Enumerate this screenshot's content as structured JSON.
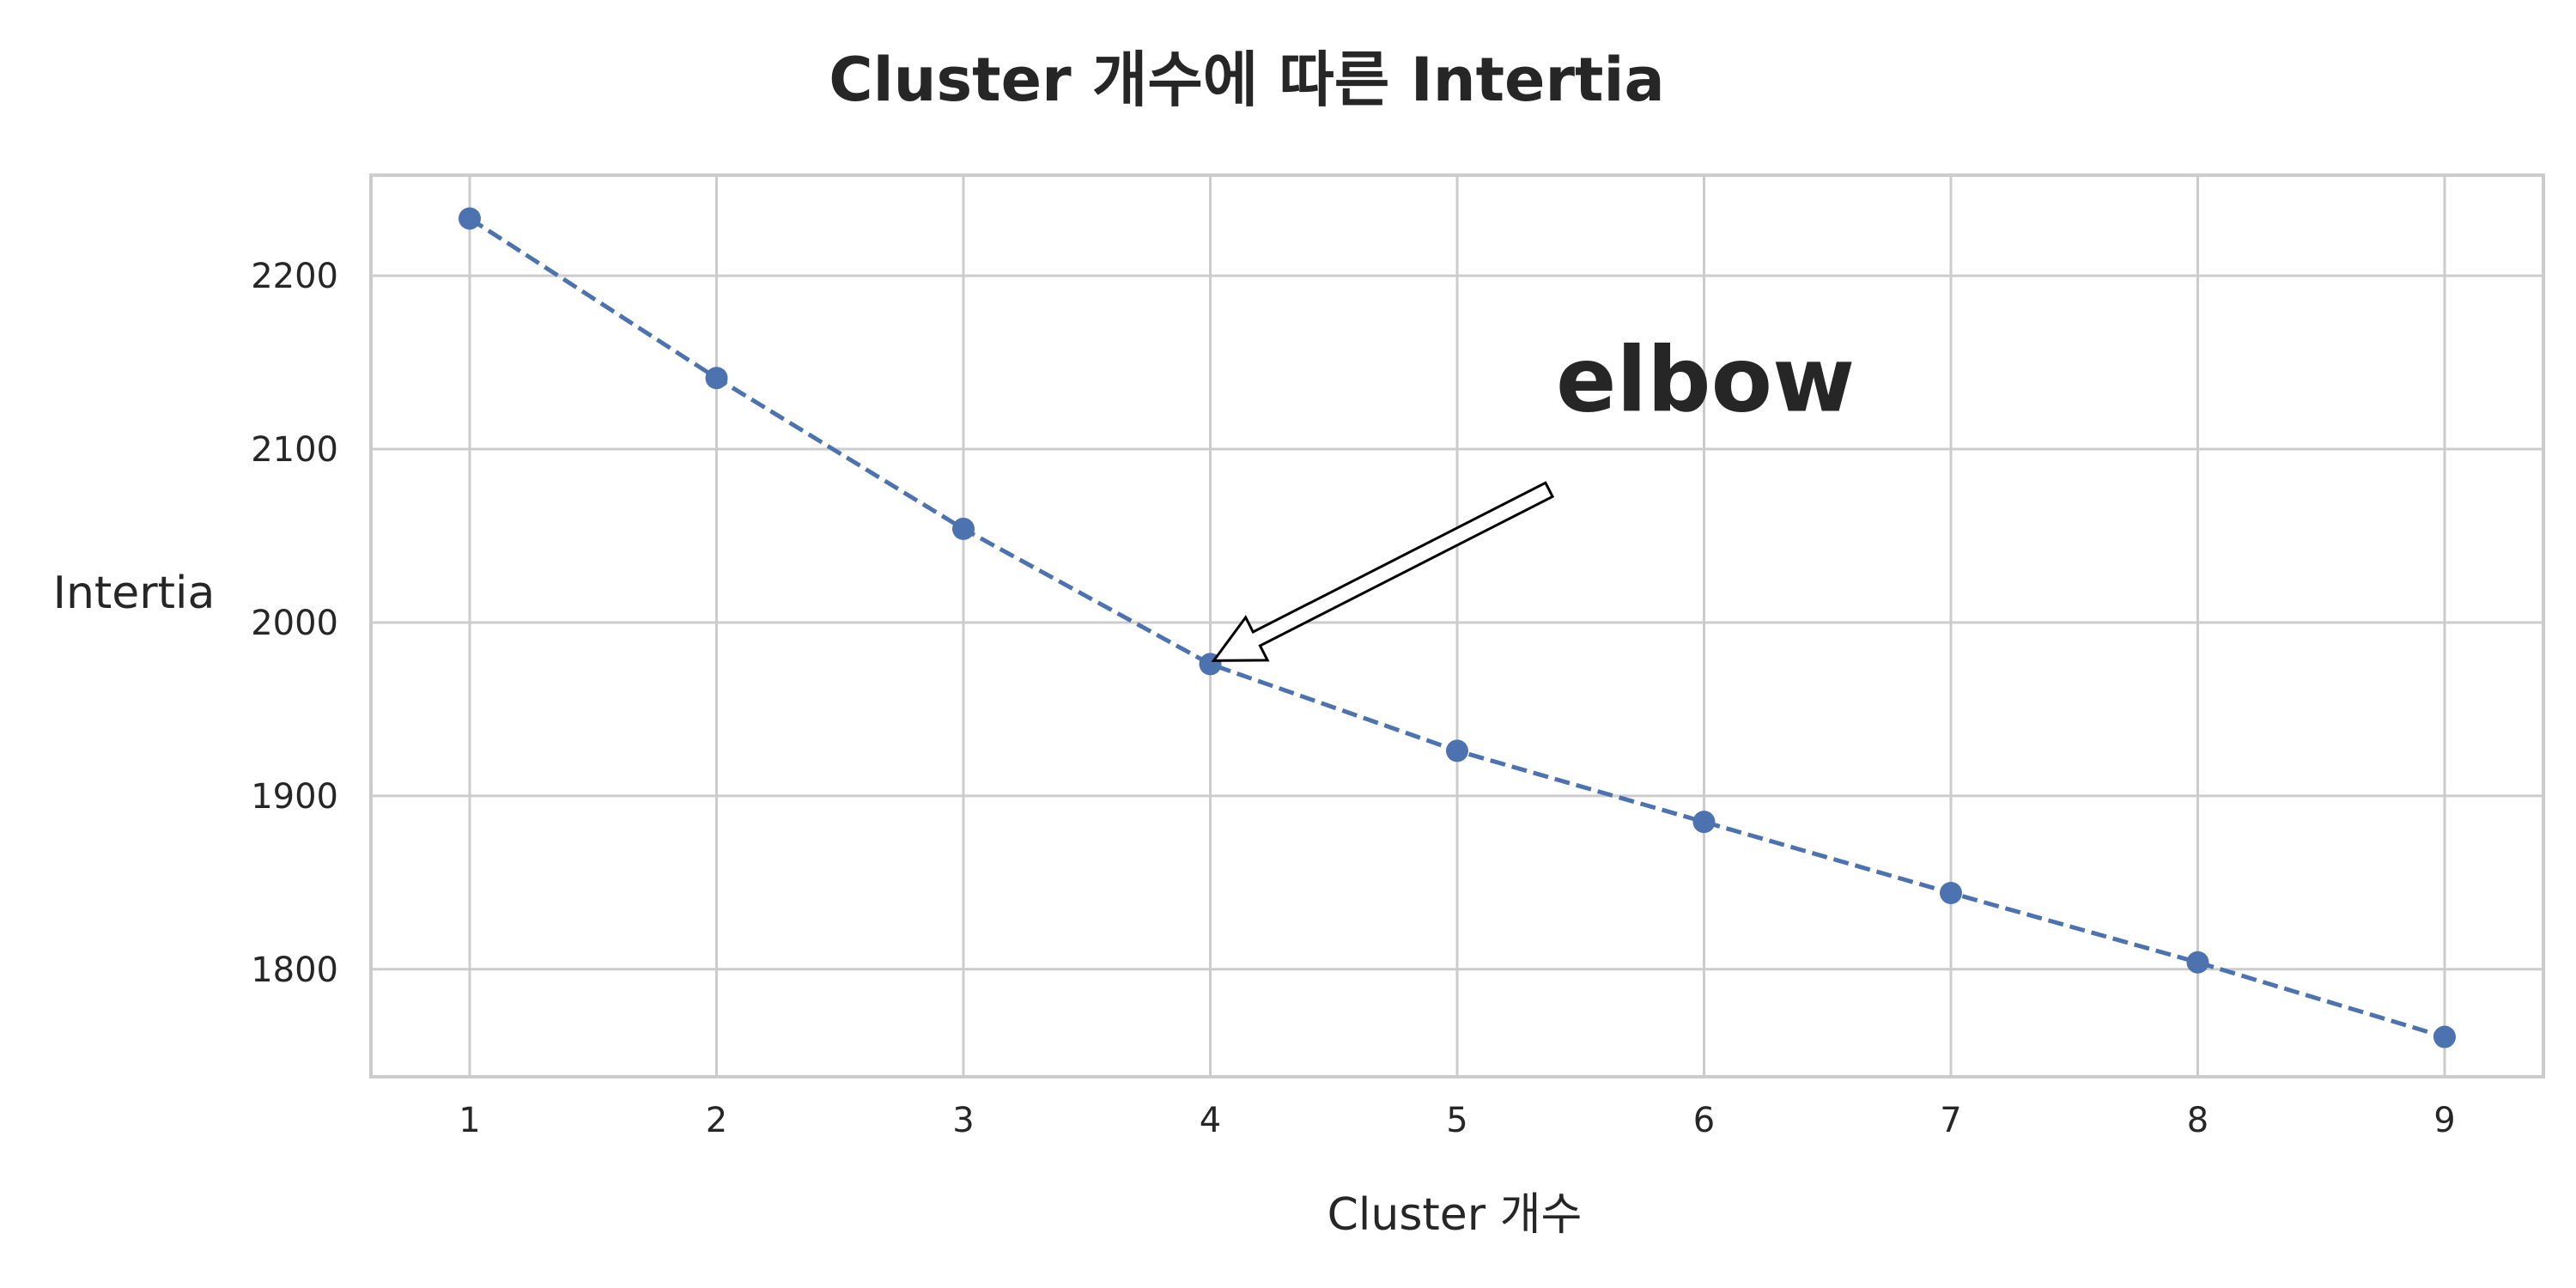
{
  "chart_data": {
    "type": "line",
    "title": "Cluster 개수에 따른 Intertia",
    "xlabel": "Cluster 개수",
    "ylabel": "Intertia",
    "x": [
      1,
      2,
      3,
      4,
      5,
      6,
      7,
      8,
      9
    ],
    "xticks": [
      "1",
      "2",
      "3",
      "4",
      "5",
      "6",
      "7",
      "8",
      "9"
    ],
    "yticks": [
      "1800",
      "1900",
      "2000",
      "2100",
      "2200"
    ],
    "xlim": [
      0.6,
      9.4
    ],
    "ylim": [
      1738,
      2258
    ],
    "grid": true,
    "series": [
      {
        "values": [
          2233,
          2141,
          2054,
          1976,
          1926,
          1885,
          1844,
          1804,
          1761
        ],
        "color": "#4c72b0",
        "line_style": "dashed",
        "marker": "circle"
      }
    ],
    "annotations": [
      {
        "text": "elbow",
        "x": 4,
        "y": 1976,
        "text_x": 5.4,
        "text_y": 2140
      }
    ]
  }
}
